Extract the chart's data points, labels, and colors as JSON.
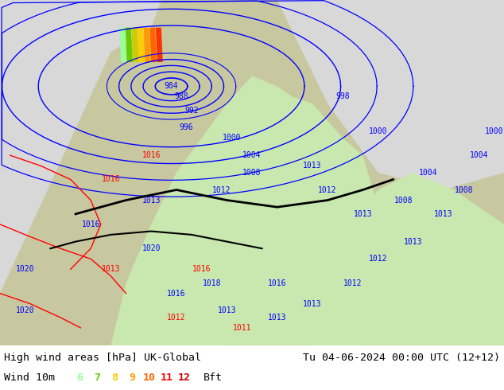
{
  "title_left": "High wind areas [hPa] UK-Global",
  "title_right": "Tu 04-06-2024 00:00 UTC (12+12)",
  "wind_label": "Wind 10m",
  "bft_label": "Bft",
  "bft_values": [
    "6",
    "7",
    "8",
    "9",
    "10",
    "11",
    "12"
  ],
  "bft_colors": [
    "#99ff99",
    "#66cc00",
    "#ffcc00",
    "#ff9900",
    "#ff6600",
    "#ff0000",
    "#cc0000"
  ],
  "bg_color": "#ffffff",
  "map_bg": "#c8c8a0",
  "bottom_bar_color": "#e0e0e0",
  "font_family": "monospace",
  "fig_width": 6.34,
  "fig_height": 4.9,
  "dpi": 100
}
